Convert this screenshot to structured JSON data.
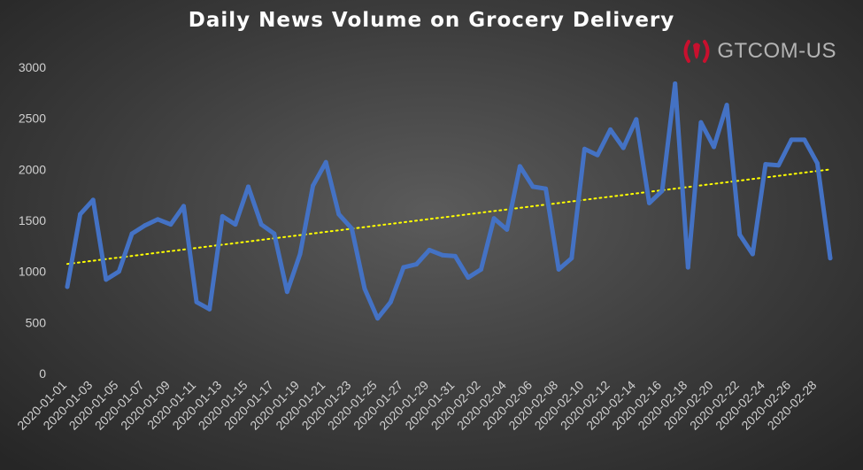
{
  "logo": {
    "text": "GTCOM-US",
    "icon": "gtcom-logo-icon",
    "accent": "#c8102e"
  },
  "colors": {
    "series": "#4472c4",
    "trend": "#ffff00",
    "axis_text": "#d0d0d0"
  },
  "chart_data": {
    "type": "line",
    "title": "Daily News Volume on Grocery Delivery",
    "xlabel": "",
    "ylabel": "",
    "ylim": [
      0,
      3000
    ],
    "yticks": [
      0,
      500,
      1000,
      1500,
      2000,
      2500,
      3000
    ],
    "grid": false,
    "legend": "none",
    "trendline": {
      "type": "linear",
      "style": "dotted",
      "color": "#ffff00"
    },
    "x": [
      "2020-01-01",
      "2020-01-02",
      "2020-01-03",
      "2020-01-04",
      "2020-01-05",
      "2020-01-06",
      "2020-01-07",
      "2020-01-08",
      "2020-01-09",
      "2020-01-10",
      "2020-01-11",
      "2020-01-12",
      "2020-01-13",
      "2020-01-14",
      "2020-01-15",
      "2020-01-16",
      "2020-01-17",
      "2020-01-18",
      "2020-01-19",
      "2020-01-20",
      "2020-01-21",
      "2020-01-22",
      "2020-01-23",
      "2020-01-24",
      "2020-01-25",
      "2020-01-26",
      "2020-01-27",
      "2020-01-28",
      "2020-01-29",
      "2020-01-30",
      "2020-01-31",
      "2020-02-01",
      "2020-02-02",
      "2020-02-03",
      "2020-02-04",
      "2020-02-05",
      "2020-02-06",
      "2020-02-07",
      "2020-02-08",
      "2020-02-09",
      "2020-02-10",
      "2020-02-11",
      "2020-02-12",
      "2020-02-13",
      "2020-02-14",
      "2020-02-15",
      "2020-02-16",
      "2020-02-17",
      "2020-02-18",
      "2020-02-19",
      "2020-02-20",
      "2020-02-21",
      "2020-02-22",
      "2020-02-23",
      "2020-02-24",
      "2020-02-25",
      "2020-02-26",
      "2020-02-27",
      "2020-02-28",
      "2020-02-29"
    ],
    "x_tick_labels": [
      "2020-01-01",
      "2020-01-03",
      "2020-01-05",
      "2020-01-07",
      "2020-01-09",
      "2020-01-11",
      "2020-01-13",
      "2020-01-15",
      "2020-01-17",
      "2020-01-19",
      "2020-01-21",
      "2020-01-23",
      "2020-01-25",
      "2020-01-27",
      "2020-01-29",
      "2020-01-31",
      "2020-02-02",
      "2020-02-04",
      "2020-02-06",
      "2020-02-08",
      "2020-02-10",
      "2020-02-12",
      "2020-02-14",
      "2020-02-16",
      "2020-02-18",
      "2020-02-20",
      "2020-02-22",
      "2020-02-24",
      "2020-02-26",
      "2020-02-28"
    ],
    "series": [
      {
        "values": [
          850,
          1560,
          1700,
          920,
          1000,
          1370,
          1450,
          1510,
          1460,
          1640,
          700,
          630,
          1540,
          1460,
          1830,
          1460,
          1370,
          800,
          1170,
          1840,
          2070,
          1560,
          1420,
          830,
          540,
          700,
          1040,
          1070,
          1210,
          1160,
          1150,
          940,
          1020,
          1520,
          1410,
          2030,
          1830,
          1810,
          1020,
          1130,
          2200,
          2140,
          2390,
          2210,
          2490,
          1670,
          1790,
          2840,
          1040,
          2460,
          2220,
          2630,
          1360,
          1170,
          2050,
          2040,
          2290,
          2290,
          2060,
          1130
        ]
      }
    ]
  }
}
